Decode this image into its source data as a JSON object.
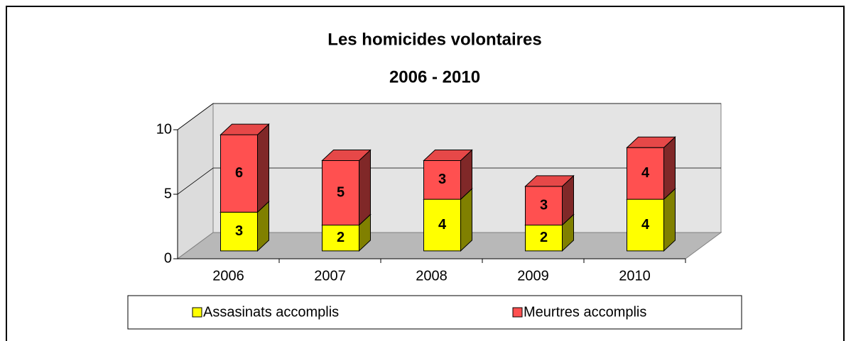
{
  "chart_data": {
    "type": "bar3d_stacked",
    "title": "Les homicides volontaires",
    "subtitle": "2006 - 2010",
    "categories": [
      "2006",
      "2007",
      "2008",
      "2009",
      "2010"
    ],
    "series": [
      {
        "name": "Assasinats accomplis",
        "color": "#ffff00",
        "values": [
          3,
          2,
          4,
          2,
          4
        ]
      },
      {
        "name": "Meurtres accomplis",
        "color": "#ff5050",
        "values": [
          6,
          5,
          3,
          3,
          4
        ]
      }
    ],
    "ylim": [
      0,
      10
    ],
    "yticks": [
      0,
      5,
      10
    ],
    "grid": true,
    "legend": "bottom"
  }
}
